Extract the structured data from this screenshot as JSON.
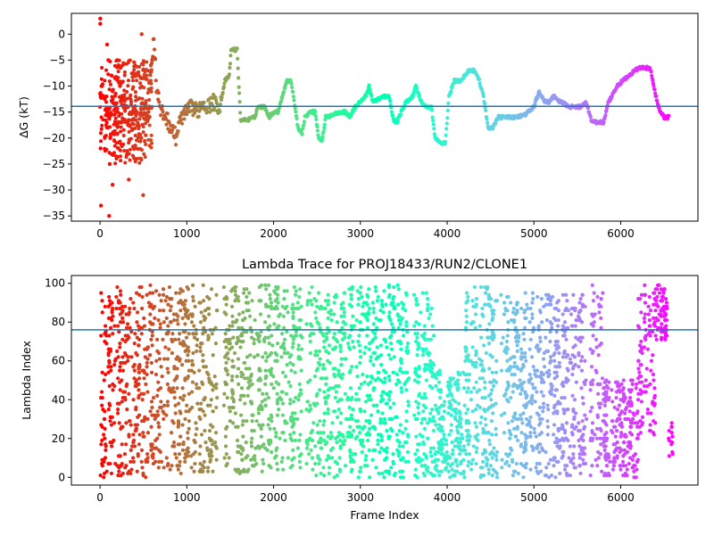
{
  "chart_data": [
    {
      "type": "scatter",
      "title": "",
      "xlabel": "",
      "ylabel": "ΔG (kT)",
      "xlim": [
        -330,
        6890
      ],
      "ylim": [
        -36,
        4
      ],
      "xticks": [
        0,
        1000,
        2000,
        3000,
        4000,
        5000,
        6000
      ],
      "yticks": [
        0,
        -5,
        -10,
        -15,
        -20,
        -25,
        -30,
        -35
      ],
      "hline": -13.9,
      "hline_color": "#1f77b4",
      "colormap": "rainbow",
      "grid": false,
      "trace": [
        [
          0,
          -12
        ],
        [
          30,
          -10
        ],
        [
          60,
          -14
        ],
        [
          100,
          -16
        ],
        [
          150,
          -12
        ],
        [
          200,
          -18
        ],
        [
          260,
          -12
        ],
        [
          320,
          -17
        ],
        [
          380,
          -15
        ],
        [
          450,
          -17
        ],
        [
          500,
          -14
        ],
        [
          560,
          -15
        ],
        [
          620,
          0
        ],
        [
          650,
          -10
        ],
        [
          700,
          -15
        ],
        [
          760,
          -16
        ],
        [
          820,
          -18
        ],
        [
          880,
          -20
        ],
        [
          900,
          -18
        ],
        [
          940,
          -16
        ],
        [
          1000,
          -15
        ],
        [
          1060,
          -14
        ],
        [
          1120,
          -15
        ],
        [
          1180,
          -13
        ],
        [
          1240,
          -14
        ],
        [
          1300,
          -13
        ],
        [
          1380,
          -14
        ],
        [
          1440,
          -9
        ],
        [
          1490,
          -8
        ],
        [
          1510,
          -3
        ],
        [
          1580,
          -3
        ],
        [
          1600,
          -10
        ],
        [
          1620,
          -16.5
        ],
        [
          1700,
          -16.5
        ],
        [
          1780,
          -16
        ],
        [
          1820,
          -14
        ],
        [
          1900,
          -14
        ],
        [
          1950,
          -16
        ],
        [
          2000,
          -15
        ],
        [
          2050,
          -15
        ],
        [
          2100,
          -12
        ],
        [
          2150,
          -9
        ],
        [
          2200,
          -9
        ],
        [
          2230,
          -12
        ],
        [
          2280,
          -18
        ],
        [
          2330,
          -19
        ],
        [
          2360,
          -16
        ],
        [
          2420,
          -15
        ],
        [
          2480,
          -15
        ],
        [
          2520,
          -20
        ],
        [
          2560,
          -20.5
        ],
        [
          2600,
          -16
        ],
        [
          2680,
          -15.5
        ],
        [
          2760,
          -15
        ],
        [
          2830,
          -15
        ],
        [
          2880,
          -16
        ],
        [
          2940,
          -14
        ],
        [
          3000,
          -13
        ],
        [
          3060,
          -12
        ],
        [
          3100,
          -10
        ],
        [
          3140,
          -13
        ],
        [
          3200,
          -12.5
        ],
        [
          3270,
          -12
        ],
        [
          3330,
          -12
        ],
        [
          3380,
          -16.5
        ],
        [
          3420,
          -17
        ],
        [
          3470,
          -15
        ],
        [
          3530,
          -13
        ],
        [
          3600,
          -12
        ],
        [
          3640,
          -10
        ],
        [
          3700,
          -13
        ],
        [
          3760,
          -14
        ],
        [
          3820,
          -14
        ],
        [
          3860,
          -20
        ],
        [
          3930,
          -21
        ],
        [
          3980,
          -21
        ],
        [
          4020,
          -12
        ],
        [
          4080,
          -9
        ],
        [
          4150,
          -9
        ],
        [
          4200,
          -8
        ],
        [
          4250,
          -7
        ],
        [
          4320,
          -7
        ],
        [
          4370,
          -9
        ],
        [
          4420,
          -12
        ],
        [
          4470,
          -18
        ],
        [
          4530,
          -18
        ],
        [
          4580,
          -16
        ],
        [
          4700,
          -16
        ],
        [
          4800,
          -16
        ],
        [
          4900,
          -15.5
        ],
        [
          5000,
          -14
        ],
        [
          5060,
          -11
        ],
        [
          5120,
          -13
        ],
        [
          5180,
          -13
        ],
        [
          5230,
          -12
        ],
        [
          5300,
          -13
        ],
        [
          5360,
          -13.5
        ],
        [
          5420,
          -14
        ],
        [
          5480,
          -14
        ],
        [
          5540,
          -14
        ],
        [
          5600,
          -13
        ],
        [
          5660,
          -16.5
        ],
        [
          5720,
          -17
        ],
        [
          5800,
          -17
        ],
        [
          5820,
          -16
        ],
        [
          5860,
          -13
        ],
        [
          5900,
          -12
        ],
        [
          5960,
          -10
        ],
        [
          6020,
          -9
        ],
        [
          6100,
          -8
        ],
        [
          6160,
          -7
        ],
        [
          6220,
          -6.5
        ],
        [
          6340,
          -6.5
        ],
        [
          6380,
          -10
        ],
        [
          6420,
          -13
        ],
        [
          6460,
          -15
        ],
        [
          6500,
          -16
        ],
        [
          6560,
          -16
        ]
      ],
      "early_scatter": {
        "x_range": [
          0,
          500
        ],
        "y_values": [
          3,
          2,
          -2,
          -5,
          -8,
          -10,
          -12,
          -15,
          -18,
          -20,
          -22,
          -25,
          -29,
          -33,
          -35,
          -10,
          -5,
          0,
          -15,
          -20,
          -31,
          -28,
          -22,
          -17,
          -11,
          -6
        ]
      }
    },
    {
      "type": "scatter",
      "title": "Lambda Trace for PROJ18433/RUN2/CLONE1",
      "xlabel": "Frame Index",
      "ylabel": "Lambda Index",
      "xlim": [
        -330,
        6890
      ],
      "ylim": [
        -4,
        104
      ],
      "xticks": [
        0,
        1000,
        2000,
        3000,
        4000,
        5000,
        6000
      ],
      "yticks": [
        0,
        20,
        40,
        60,
        80,
        100
      ],
      "hline": 76,
      "hline_color": "#1f77b4",
      "colormap": "rainbow",
      "grid": false,
      "n_points": 4200,
      "lambda_max": 99,
      "gaps": [
        [
          1350,
          1420
        ],
        [
          2330,
          2380
        ],
        [
          3560,
          3620
        ],
        [
          4580,
          4620
        ],
        [
          5610,
          5650
        ],
        [
          6560,
          6580
        ]
      ],
      "segments": [
        {
          "x": [
            0,
            700
          ],
          "low": 0,
          "high": 99
        },
        {
          "x": [
            700,
            1900
          ],
          "low": 2,
          "high": 99
        },
        {
          "x": [
            1900,
            2400
          ],
          "low": 3,
          "high": 99
        },
        {
          "x": [
            2400,
            3500
          ],
          "low": 0,
          "high": 99
        },
        {
          "x": [
            3500,
            3850
          ],
          "low": 0,
          "high": 95
        },
        {
          "x": [
            3850,
            4200
          ],
          "low": 0,
          "high": 55
        },
        {
          "x": [
            4200,
            4550
          ],
          "low": 0,
          "high": 99
        },
        {
          "x": [
            4550,
            5650
          ],
          "low": 0,
          "high": 95
        },
        {
          "x": [
            5650,
            5800
          ],
          "low": 0,
          "high": 99
        },
        {
          "x": [
            5800,
            6200
          ],
          "low": 0,
          "high": 50
        },
        {
          "x": [
            6200,
            6400
          ],
          "low": 20,
          "high": 99
        },
        {
          "x": [
            6400,
            6550
          ],
          "low": 70,
          "high": 99
        },
        {
          "x": [
            6550,
            6600
          ],
          "low": 10,
          "high": 28
        }
      ]
    }
  ]
}
